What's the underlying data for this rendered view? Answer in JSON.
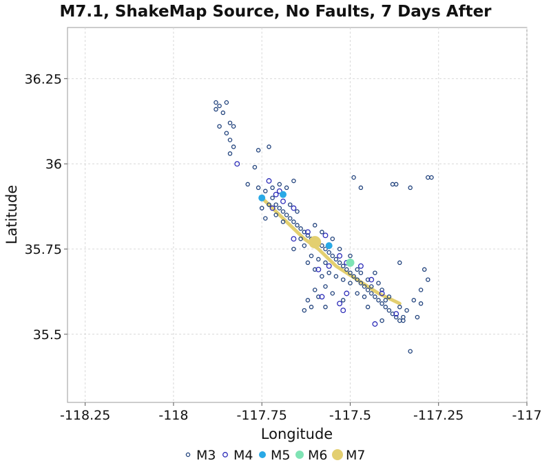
{
  "chart_data": {
    "type": "scatter",
    "title": "M7.1, ShakeMap Source, No Faults, 7 Days After",
    "xlabel": "Longitude",
    "ylabel": "Latitude",
    "xlim": [
      -118.3,
      -117.0
    ],
    "ylim": [
      35.3,
      36.4
    ],
    "x_ticks": [
      -118.25,
      -118,
      -117.75,
      -117.5,
      -117.25,
      -117
    ],
    "x_tick_labels": [
      "-118.25",
      "-118",
      "-117.75",
      "-117.5",
      "-117.25",
      "-117"
    ],
    "y_ticks": [
      35.5,
      35.75,
      36,
      36.25
    ],
    "y_tick_labels": [
      "35.5",
      "35.75",
      "36",
      "36.25"
    ],
    "grid": true,
    "legend_position": "bottom-center",
    "rupture_trace": {
      "color": "#e3cf70",
      "points": [
        [
          -117.75,
          35.9
        ],
        [
          -117.71,
          35.86
        ],
        [
          -117.67,
          35.82
        ],
        [
          -117.63,
          35.78
        ],
        [
          -117.59,
          35.75
        ],
        [
          -117.54,
          35.7
        ],
        [
          -117.48,
          35.66
        ],
        [
          -117.42,
          35.62
        ],
        [
          -117.36,
          35.59
        ]
      ]
    },
    "series": [
      {
        "name": "M3",
        "marker": "ring",
        "color": "#1d3f7a",
        "points": [
          [
            -117.88,
            36.18
          ],
          [
            -117.87,
            36.17
          ],
          [
            -117.88,
            36.16
          ],
          [
            -117.86,
            36.15
          ],
          [
            -117.85,
            36.18
          ],
          [
            -117.87,
            36.11
          ],
          [
            -117.84,
            36.12
          ],
          [
            -117.83,
            36.11
          ],
          [
            -117.85,
            36.09
          ],
          [
            -117.84,
            36.07
          ],
          [
            -117.83,
            36.05
          ],
          [
            -117.84,
            36.03
          ],
          [
            -117.76,
            36.04
          ],
          [
            -117.73,
            36.05
          ],
          [
            -117.77,
            35.99
          ],
          [
            -117.79,
            35.94
          ],
          [
            -117.76,
            35.93
          ],
          [
            -117.74,
            35.92
          ],
          [
            -117.72,
            35.93
          ],
          [
            -117.7,
            35.94
          ],
          [
            -117.68,
            35.93
          ],
          [
            -117.66,
            35.95
          ],
          [
            -117.72,
            35.9
          ],
          [
            -117.71,
            35.88
          ],
          [
            -117.7,
            35.87
          ],
          [
            -117.69,
            35.86
          ],
          [
            -117.68,
            35.85
          ],
          [
            -117.67,
            35.84
          ],
          [
            -117.66,
            35.83
          ],
          [
            -117.65,
            35.82
          ],
          [
            -117.64,
            35.81
          ],
          [
            -117.63,
            35.8
          ],
          [
            -117.62,
            35.79
          ],
          [
            -117.61,
            35.78
          ],
          [
            -117.6,
            35.77
          ],
          [
            -117.58,
            35.76
          ],
          [
            -117.57,
            35.75
          ],
          [
            -117.56,
            35.74
          ],
          [
            -117.55,
            35.73
          ],
          [
            -117.54,
            35.72
          ],
          [
            -117.53,
            35.71
          ],
          [
            -117.52,
            35.7
          ],
          [
            -117.51,
            35.69
          ],
          [
            -117.5,
            35.68
          ],
          [
            -117.49,
            35.67
          ],
          [
            -117.48,
            35.66
          ],
          [
            -117.47,
            35.65
          ],
          [
            -117.46,
            35.64
          ],
          [
            -117.45,
            35.63
          ],
          [
            -117.44,
            35.62
          ],
          [
            -117.43,
            35.61
          ],
          [
            -117.42,
            35.6
          ],
          [
            -117.41,
            35.59
          ],
          [
            -117.4,
            35.58
          ],
          [
            -117.39,
            35.57
          ],
          [
            -117.38,
            35.56
          ],
          [
            -117.37,
            35.55
          ],
          [
            -117.36,
            35.54
          ],
          [
            -117.35,
            35.55
          ],
          [
            -117.34,
            35.57
          ],
          [
            -117.31,
            35.55
          ],
          [
            -117.3,
            35.59
          ],
          [
            -117.32,
            35.6
          ],
          [
            -117.3,
            35.63
          ],
          [
            -117.28,
            35.66
          ],
          [
            -117.29,
            35.69
          ],
          [
            -117.36,
            35.71
          ],
          [
            -117.33,
            35.45
          ],
          [
            -117.41,
            35.54
          ],
          [
            -117.45,
            35.58
          ],
          [
            -117.48,
            35.62
          ],
          [
            -117.52,
            35.6
          ],
          [
            -117.55,
            35.62
          ],
          [
            -117.57,
            35.64
          ],
          [
            -117.59,
            35.61
          ],
          [
            -117.6,
            35.63
          ],
          [
            -117.62,
            35.6
          ],
          [
            -117.63,
            35.57
          ],
          [
            -117.61,
            35.58
          ],
          [
            -117.58,
            35.67
          ],
          [
            -117.6,
            35.69
          ],
          [
            -117.56,
            35.68
          ],
          [
            -117.54,
            35.67
          ],
          [
            -117.52,
            35.66
          ],
          [
            -117.5,
            35.65
          ],
          [
            -117.47,
            35.68
          ],
          [
            -117.45,
            35.66
          ],
          [
            -117.43,
            35.68
          ],
          [
            -117.42,
            35.65
          ],
          [
            -117.41,
            35.63
          ],
          [
            -117.4,
            35.6
          ],
          [
            -117.39,
            35.61
          ],
          [
            -117.44,
            35.64
          ],
          [
            -117.46,
            35.61
          ],
          [
            -117.48,
            35.69
          ],
          [
            -117.5,
            35.73
          ],
          [
            -117.53,
            35.75
          ],
          [
            -117.55,
            35.78
          ],
          [
            -117.58,
            35.8
          ],
          [
            -117.6,
            35.82
          ],
          [
            -117.65,
            35.86
          ],
          [
            -117.67,
            35.88
          ],
          [
            -117.69,
            35.91
          ],
          [
            -117.73,
            35.88
          ],
          [
            -117.75,
            35.87
          ],
          [
            -117.74,
            35.84
          ],
          [
            -117.71,
            35.85
          ],
          [
            -117.69,
            35.83
          ],
          [
            -117.64,
            35.78
          ],
          [
            -117.63,
            35.76
          ],
          [
            -117.61,
            35.73
          ],
          [
            -117.59,
            35.72
          ],
          [
            -117.57,
            35.71
          ],
          [
            -117.49,
            35.96
          ],
          [
            -117.47,
            35.93
          ],
          [
            -117.38,
            35.94
          ],
          [
            -117.37,
            35.94
          ],
          [
            -117.33,
            35.93
          ],
          [
            -117.28,
            35.96
          ],
          [
            -117.27,
            35.96
          ],
          [
            -117.35,
            35.54
          ],
          [
            -117.36,
            35.58
          ],
          [
            -117.62,
            35.71
          ],
          [
            -117.66,
            35.75
          ],
          [
            -117.57,
            35.58
          ]
        ]
      },
      {
        "name": "M4",
        "marker": "ring",
        "color": "#2b2bb8",
        "points": [
          [
            -117.82,
            36.0
          ],
          [
            -117.73,
            35.95
          ],
          [
            -117.71,
            35.91
          ],
          [
            -117.69,
            35.89
          ],
          [
            -117.66,
            35.87
          ],
          [
            -117.62,
            35.8
          ],
          [
            -117.57,
            35.79
          ],
          [
            -117.53,
            35.73
          ],
          [
            -117.51,
            35.71
          ],
          [
            -117.47,
            35.7
          ],
          [
            -117.44,
            35.66
          ],
          [
            -117.41,
            35.62
          ],
          [
            -117.37,
            35.56
          ],
          [
            -117.43,
            35.53
          ],
          [
            -117.52,
            35.57
          ],
          [
            -117.53,
            35.59
          ],
          [
            -117.51,
            35.62
          ],
          [
            -117.58,
            35.61
          ],
          [
            -117.59,
            35.69
          ],
          [
            -117.56,
            35.7
          ],
          [
            -117.66,
            35.78
          ],
          [
            -117.72,
            35.87
          ],
          [
            -117.7,
            35.92
          ]
        ]
      },
      {
        "name": "M5",
        "marker": "dot",
        "color": "#29a9e6",
        "points": [
          [
            -117.75,
            35.9
          ],
          [
            -117.69,
            35.91
          ],
          [
            -117.56,
            35.76
          ]
        ]
      },
      {
        "name": "M6",
        "marker": "dot",
        "color": "#7fe3b4",
        "points": [
          [
            -117.5,
            35.71
          ]
        ]
      },
      {
        "name": "M7",
        "marker": "dot",
        "color": "#e3cf70",
        "points": [
          [
            -117.6,
            35.77
          ]
        ]
      }
    ]
  }
}
